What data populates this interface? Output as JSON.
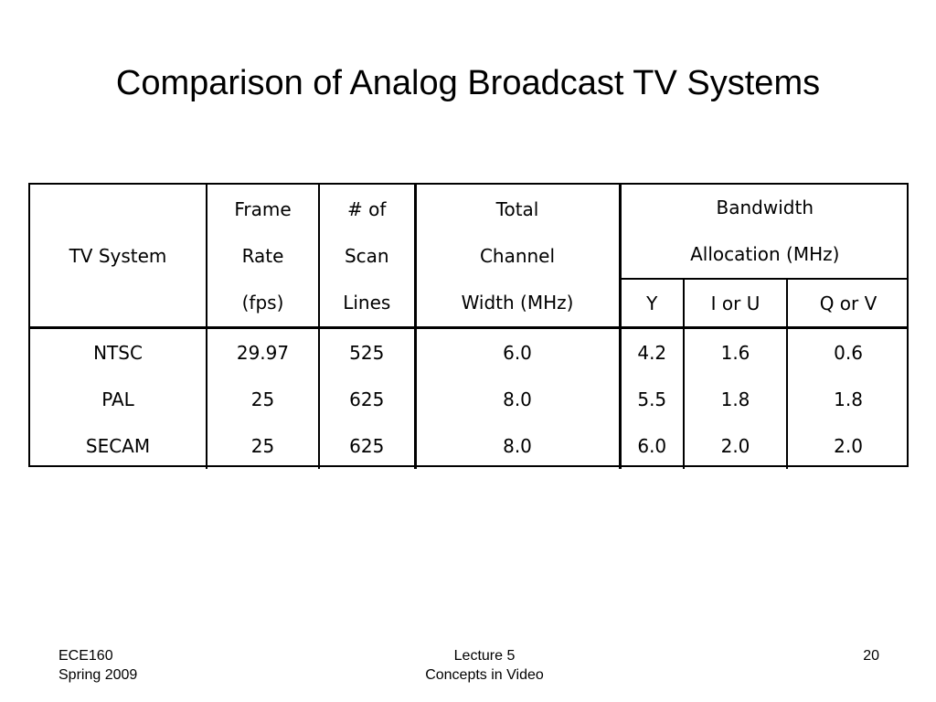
{
  "slide": {
    "title": "Comparison of Analog Broadcast TV Systems"
  },
  "table": {
    "headers": {
      "tv_system": "TV System",
      "frame_rate": [
        "Frame",
        "Rate",
        "(fps)"
      ],
      "scan_lines": [
        "# of",
        "Scan",
        "Lines"
      ],
      "channel_width": [
        "Total",
        "Channel",
        "Width (MHz)"
      ],
      "bandwidth": [
        "Bandwidth",
        "Allocation (MHz)"
      ],
      "sub": [
        "Y",
        "I or U",
        "Q or V"
      ]
    },
    "rows": [
      {
        "system": "NTSC",
        "frame_rate": "29.97",
        "scan_lines": "525",
        "channel_width": "6.0",
        "y": "4.2",
        "iu": "1.6",
        "qv": "0.6"
      },
      {
        "system": "PAL",
        "frame_rate": "25",
        "scan_lines": "625",
        "channel_width": "8.0",
        "y": "5.5",
        "iu": "1.8",
        "qv": "1.8"
      },
      {
        "system": "SECAM",
        "frame_rate": "25",
        "scan_lines": "625",
        "channel_width": "8.0",
        "y": "6.0",
        "iu": "2.0",
        "qv": "2.0"
      }
    ]
  },
  "footer": {
    "left": [
      "ECE160",
      "Spring 2009"
    ],
    "center": [
      "Lecture 5",
      "Concepts in Video"
    ],
    "page_number": "20"
  }
}
